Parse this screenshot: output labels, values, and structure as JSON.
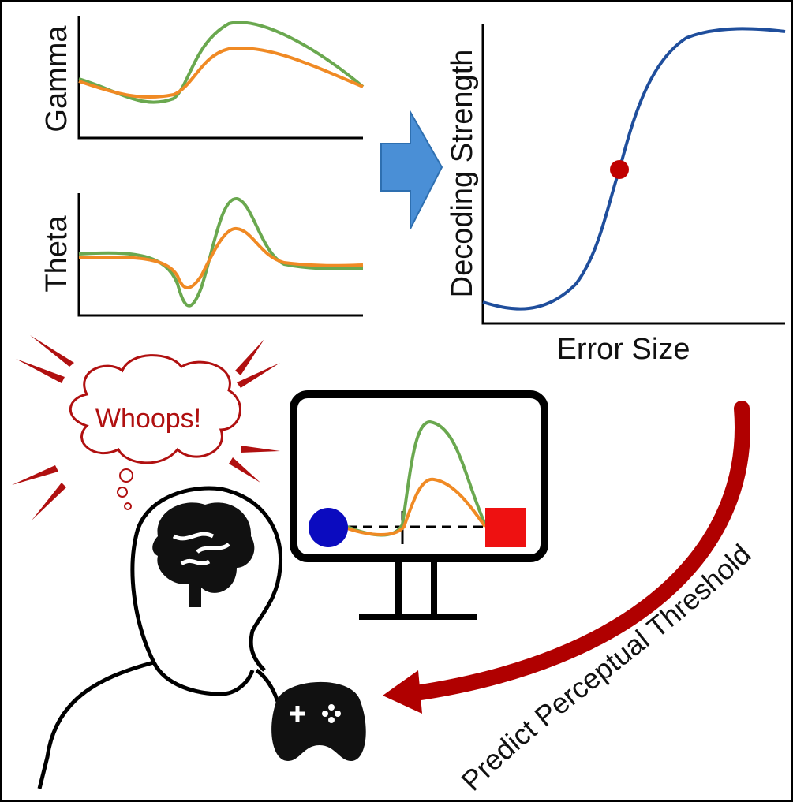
{
  "panels": {
    "gamma": {
      "label": "Gamma"
    },
    "theta": {
      "label": "Theta"
    },
    "decoding": {
      "y_label": "Decoding Strength",
      "x_label": "Error Size"
    }
  },
  "thought": {
    "text": "Whoops!"
  },
  "arrow": {
    "label": "Predict Perceptual Threshold"
  }
}
